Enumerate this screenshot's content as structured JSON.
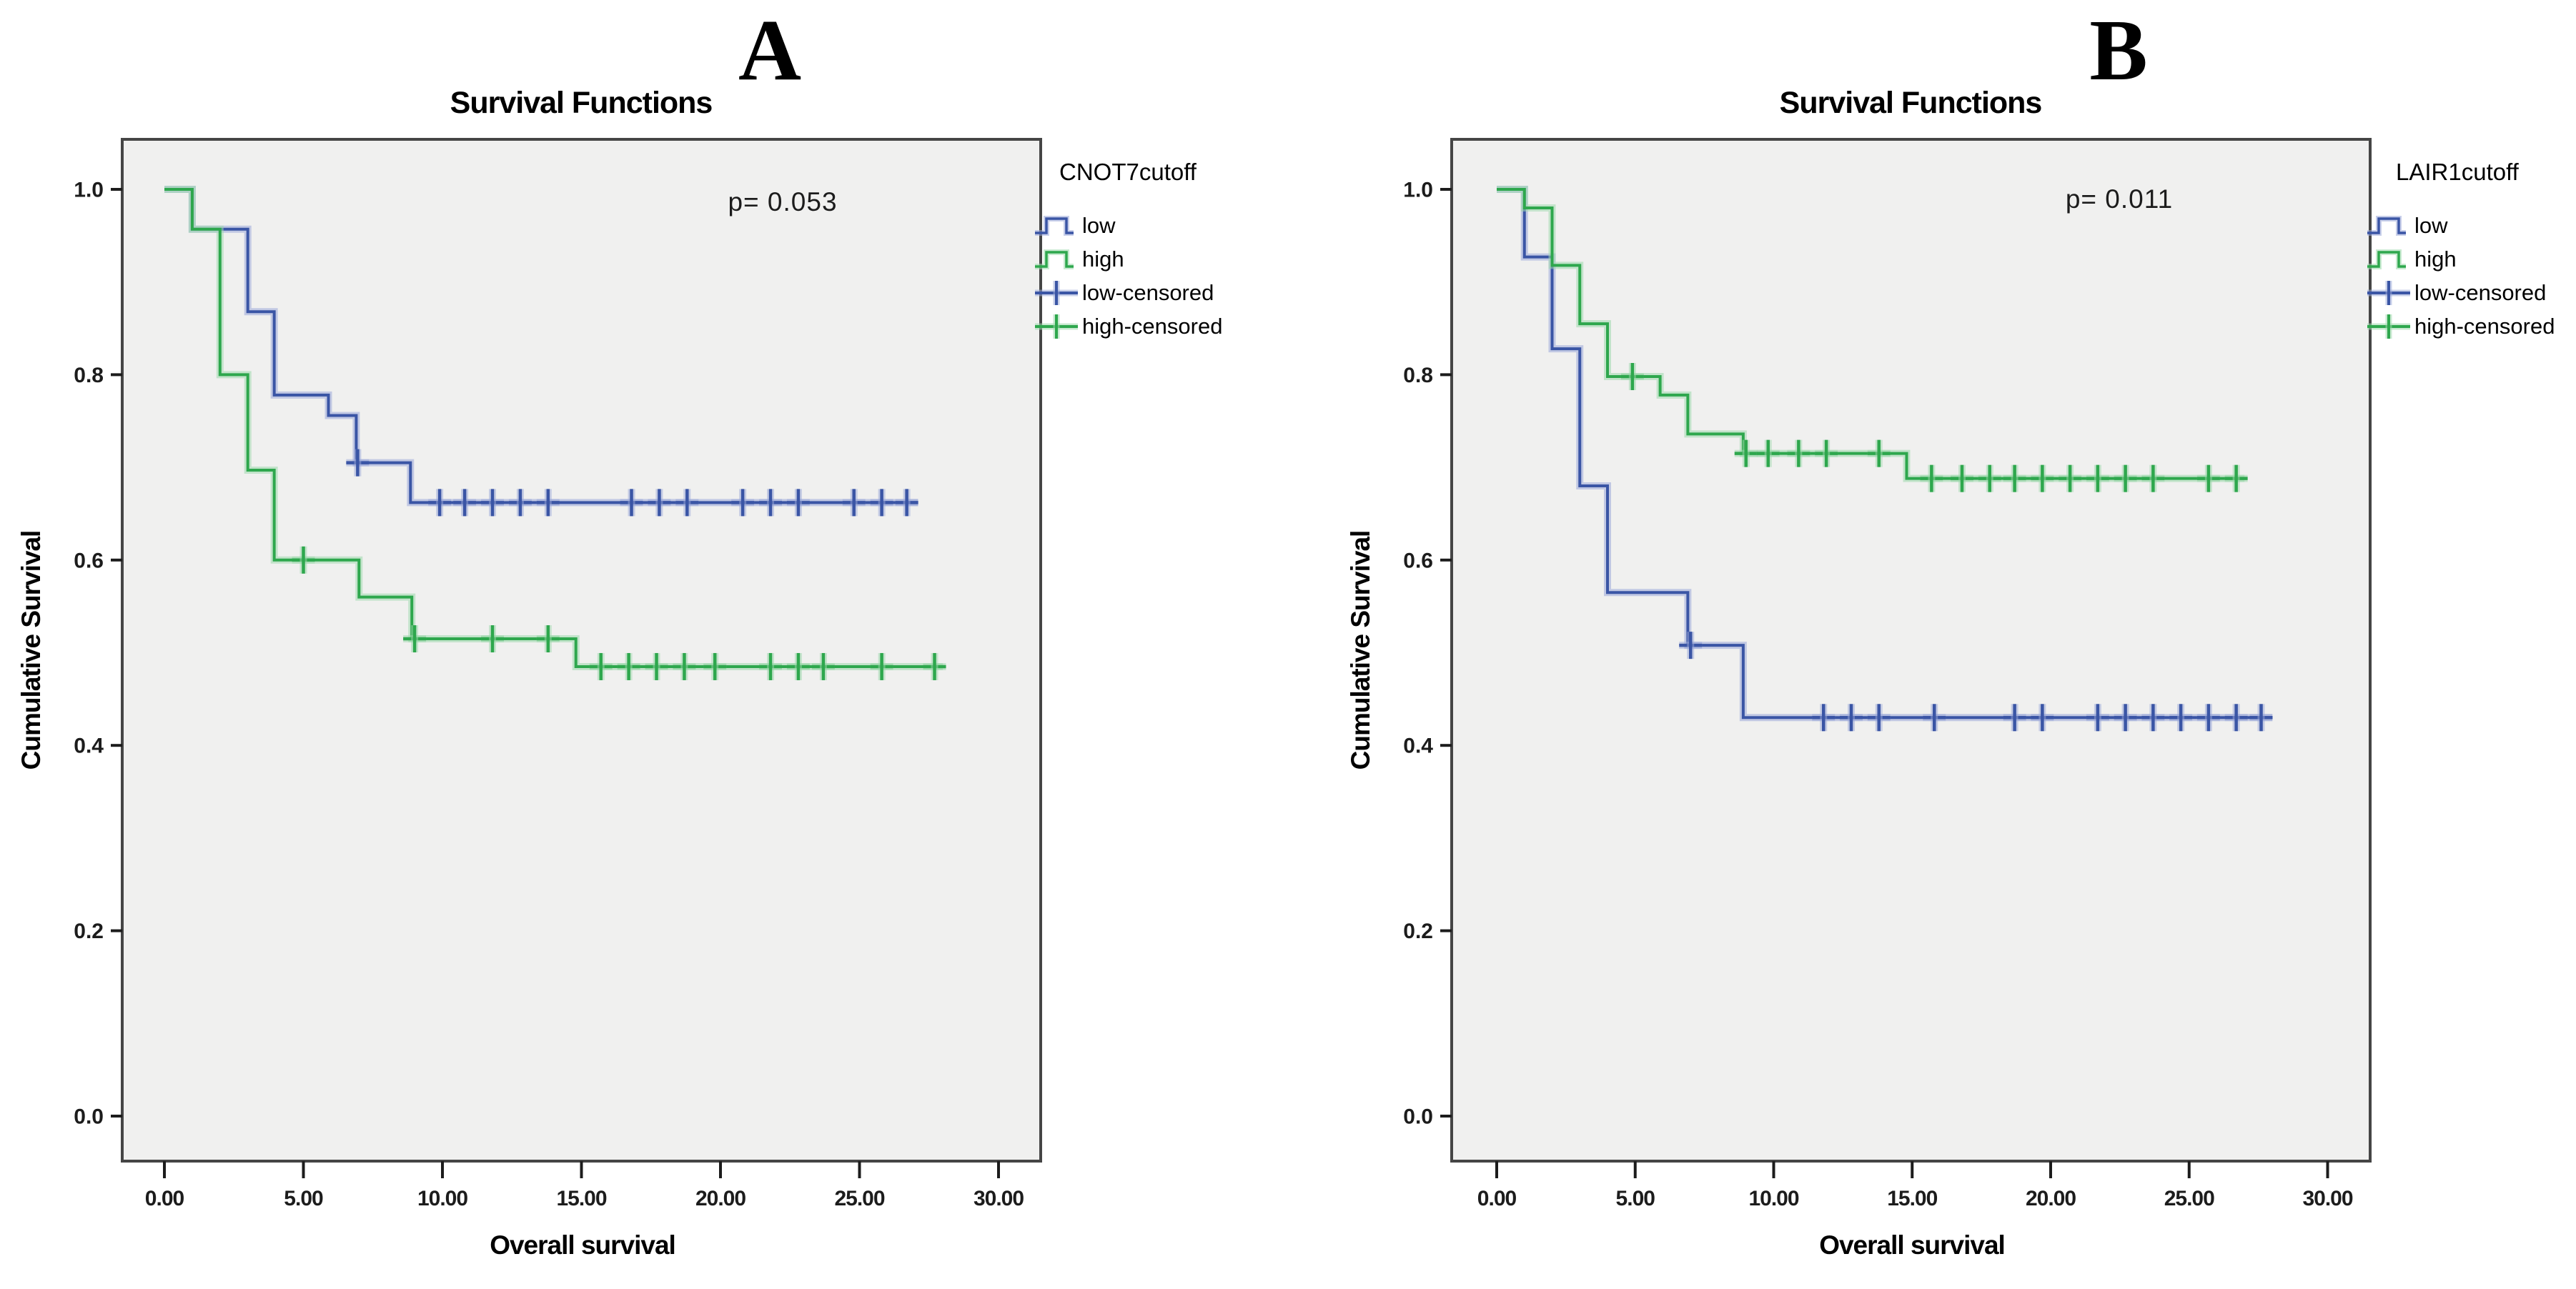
{
  "shared": {
    "ylabel": "Cumulative Survival",
    "xlabel": "Overall survival"
  },
  "colors": {
    "low": "#3A55A5",
    "low_halo": "#9AA8D8",
    "high": "#2EA74D",
    "high_halo": "#9CD8AB",
    "plot_bg": "#F0F0EF",
    "frame": "#454545",
    "tick": "#1c1c1c"
  },
  "chart_data": [
    {
      "type": "line",
      "subtype": "kaplan_meier_step",
      "panel": "A",
      "title": "Survival Functions",
      "annotation": "p= 0.053",
      "legend_title": "CNOT7cutoff",
      "legend_position": "right",
      "grid": false,
      "xlabel": "Overall survival",
      "ylabel": "Cumulative Survival",
      "xlim": [
        -1.5,
        31.6
      ],
      "ylim": [
        -0.054,
        1.056
      ],
      "x_ticks": [
        0,
        5,
        10,
        15,
        20,
        25,
        30
      ],
      "x_tick_labels": [
        "0.00",
        "5.00",
        "10.00",
        "15.00",
        "20.00",
        "25.00",
        "30.00"
      ],
      "y_ticks": [
        0.0,
        0.2,
        0.4,
        0.6,
        0.8,
        1.0
      ],
      "y_tick_labels": [
        "0.0",
        "0.2",
        "0.4",
        "0.6",
        "0.8",
        "1.0"
      ],
      "series": [
        {
          "name": "low",
          "color_key": "low",
          "steps": [
            [
              0,
              1.0
            ],
            [
              1.0,
              0.957
            ],
            [
              3.0,
              0.868
            ],
            [
              3.95,
              0.778
            ],
            [
              5.9,
              0.756
            ],
            [
              6.9,
              0.705
            ],
            [
              8.85,
              0.662
            ]
          ],
          "end": 27.1,
          "censored": [
            [
              6.95,
              0.705
            ],
            [
              9.9,
              0.662
            ],
            [
              10.8,
              0.662
            ],
            [
              11.8,
              0.662
            ],
            [
              12.8,
              0.662
            ],
            [
              13.8,
              0.662
            ],
            [
              16.8,
              0.662
            ],
            [
              17.8,
              0.662
            ],
            [
              18.8,
              0.662
            ],
            [
              20.8,
              0.662
            ],
            [
              21.8,
              0.662
            ],
            [
              22.8,
              0.662
            ],
            [
              24.8,
              0.662
            ],
            [
              25.8,
              0.662
            ],
            [
              26.7,
              0.662
            ]
          ]
        },
        {
          "name": "high",
          "color_key": "high",
          "steps": [
            [
              0,
              1.0
            ],
            [
              1.0,
              0.957
            ],
            [
              2.0,
              0.8
            ],
            [
              3.0,
              0.697
            ],
            [
              3.95,
              0.6
            ],
            [
              7.0,
              0.56
            ],
            [
              8.9,
              0.515
            ],
            [
              14.8,
              0.485
            ]
          ],
          "end": 28.0,
          "censored": [
            [
              5.0,
              0.6
            ],
            [
              9.0,
              0.515
            ],
            [
              11.8,
              0.515
            ],
            [
              13.8,
              0.515
            ],
            [
              15.7,
              0.485
            ],
            [
              16.7,
              0.485
            ],
            [
              17.7,
              0.485
            ],
            [
              18.7,
              0.485
            ],
            [
              19.8,
              0.485
            ],
            [
              21.8,
              0.485
            ],
            [
              22.8,
              0.485
            ],
            [
              23.7,
              0.485
            ],
            [
              25.8,
              0.485
            ],
            [
              27.7,
              0.485
            ]
          ]
        }
      ],
      "legend_items": [
        {
          "label": "low",
          "glyph": "step",
          "color_key": "low"
        },
        {
          "label": "high",
          "glyph": "step",
          "color_key": "high"
        },
        {
          "label": "low-censored",
          "glyph": "plus",
          "color_key": "low"
        },
        {
          "label": "high-censored",
          "glyph": "plus",
          "color_key": "high"
        }
      ]
    },
    {
      "type": "line",
      "subtype": "kaplan_meier_step",
      "panel": "B",
      "title": "Survival Functions",
      "annotation": "p= 0.011",
      "legend_title": "LAIR1cutoff",
      "legend_position": "right",
      "grid": false,
      "xlabel": "Overall survival",
      "ylabel": "Cumulative Survival",
      "xlim": [
        -1.5,
        31.6
      ],
      "ylim": [
        -0.054,
        1.056
      ],
      "x_ticks": [
        0,
        5,
        10,
        15,
        20,
        25,
        30
      ],
      "x_tick_labels": [
        "0.00",
        "5.00",
        "10.00",
        "15.00",
        "20.00",
        "25.00",
        "30.00"
      ],
      "y_ticks": [
        0.0,
        0.2,
        0.4,
        0.6,
        0.8,
        1.0
      ],
      "y_tick_labels": [
        "0.0",
        "0.2",
        "0.4",
        "0.6",
        "0.8",
        "1.0"
      ],
      "series": [
        {
          "name": "low",
          "color_key": "low",
          "steps": [
            [
              0,
              1.0
            ],
            [
              1.0,
              0.927
            ],
            [
              2.0,
              0.828
            ],
            [
              3.0,
              0.68
            ],
            [
              4.0,
              0.565
            ],
            [
              6.9,
              0.508
            ],
            [
              8.9,
              0.43
            ]
          ],
          "end": 28.0,
          "censored": [
            [
              7.0,
              0.508
            ],
            [
              11.8,
              0.43
            ],
            [
              12.8,
              0.43
            ],
            [
              13.8,
              0.43
            ],
            [
              15.8,
              0.43
            ],
            [
              18.7,
              0.43
            ],
            [
              19.7,
              0.43
            ],
            [
              21.7,
              0.43
            ],
            [
              22.7,
              0.43
            ],
            [
              23.7,
              0.43
            ],
            [
              24.7,
              0.43
            ],
            [
              25.7,
              0.43
            ],
            [
              26.7,
              0.43
            ],
            [
              27.6,
              0.43
            ]
          ]
        },
        {
          "name": "high",
          "color_key": "high",
          "steps": [
            [
              0,
              1.0
            ],
            [
              1.0,
              0.98
            ],
            [
              2.0,
              0.918
            ],
            [
              3.0,
              0.855
            ],
            [
              4.0,
              0.798
            ],
            [
              5.9,
              0.778
            ],
            [
              6.9,
              0.736
            ],
            [
              8.9,
              0.715
            ],
            [
              14.8,
              0.688
            ]
          ],
          "end": 27.0,
          "censored": [
            [
              4.9,
              0.798
            ],
            [
              9.0,
              0.715
            ],
            [
              9.8,
              0.715
            ],
            [
              10.9,
              0.715
            ],
            [
              11.9,
              0.715
            ],
            [
              13.8,
              0.715
            ],
            [
              15.7,
              0.688
            ],
            [
              16.8,
              0.688
            ],
            [
              17.8,
              0.688
            ],
            [
              18.7,
              0.688
            ],
            [
              19.7,
              0.688
            ],
            [
              20.7,
              0.688
            ],
            [
              21.7,
              0.688
            ],
            [
              22.7,
              0.688
            ],
            [
              23.7,
              0.688
            ],
            [
              25.7,
              0.688
            ],
            [
              26.7,
              0.688
            ]
          ]
        }
      ],
      "legend_items": [
        {
          "label": "low",
          "glyph": "step",
          "color_key": "low"
        },
        {
          "label": "high",
          "glyph": "step",
          "color_key": "high"
        },
        {
          "label": "low-censored",
          "glyph": "plus",
          "color_key": "low"
        },
        {
          "label": "high-censored",
          "glyph": "plus",
          "color_key": "high"
        }
      ]
    }
  ]
}
